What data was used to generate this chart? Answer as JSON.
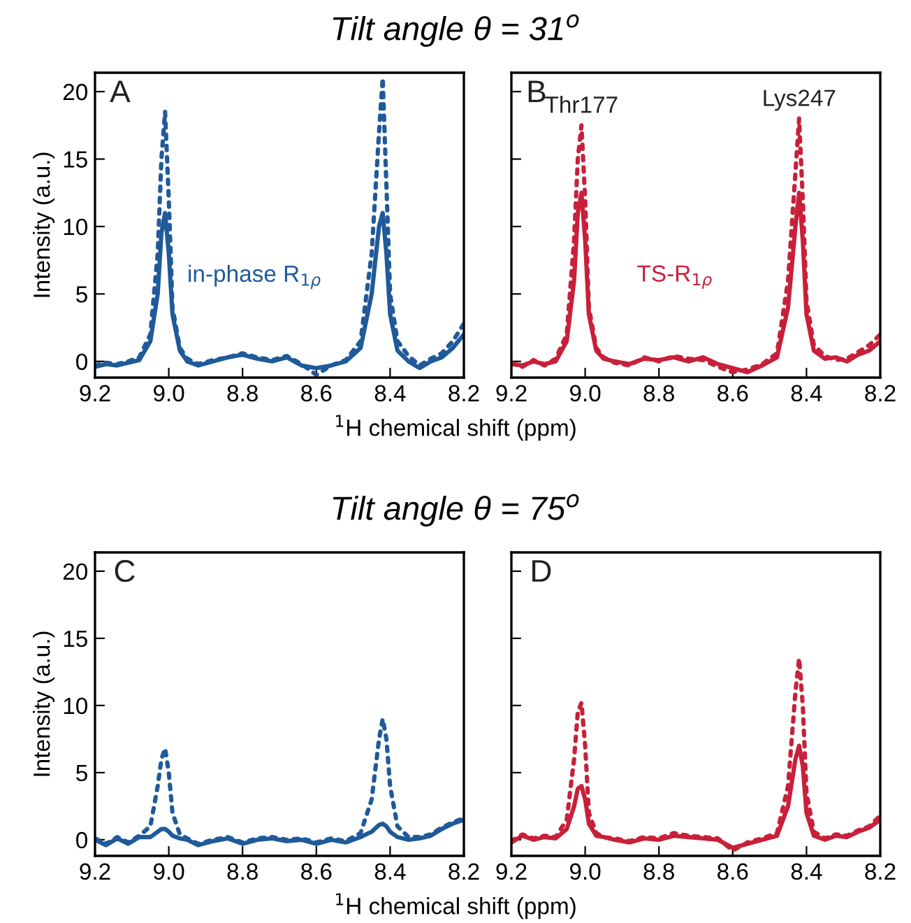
{
  "chart_data": [
    {
      "type": "line",
      "title": "Tilt angle θ = 31$^{o}$",
      "xlabel": "$^{1}$H chemical shift (ppm)",
      "ylabel": "Intensity (a.u.)",
      "annotations": [
        "A",
        "in-phase R$_{1ρ}$"
      ],
      "x": [
        9.2,
        9.17,
        9.14,
        9.11,
        9.08,
        9.05,
        9.03,
        9.02,
        9.01,
        9.0,
        8.99,
        8.97,
        8.95,
        8.92,
        8.88,
        8.84,
        8.8,
        8.76,
        8.72,
        8.68,
        8.64,
        8.6,
        8.56,
        8.52,
        8.48,
        8.45,
        8.43,
        8.42,
        8.41,
        8.4,
        8.38,
        8.35,
        8.32,
        8.29,
        8.26,
        8.23,
        8.2
      ],
      "series": [
        {
          "color": "#1f5a9a",
          "line_style": "solid",
          "values": [
            -0.4,
            -0.2,
            -0.3,
            -0.1,
            0.1,
            1.5,
            5,
            9.5,
            11,
            8,
            3.5,
            0.8,
            0,
            -0.3,
            0,
            0.3,
            0.5,
            0.2,
            0,
            0.3,
            -0.3,
            -0.5,
            -0.3,
            0,
            1,
            5,
            10,
            11,
            8,
            3.5,
            0.8,
            0,
            -0.5,
            0,
            0.3,
            1,
            2
          ]
        },
        {
          "color": "#1f5a9a",
          "line_style": "dotted",
          "values": [
            -0.3,
            -0.1,
            -0.2,
            0,
            0.3,
            2,
            8,
            15,
            18.5,
            12,
            4,
            1,
            0.2,
            -0.2,
            0.1,
            0.3,
            0.6,
            0.3,
            0.1,
            0.4,
            -0.2,
            -1,
            -0.3,
            0.1,
            1.5,
            8,
            17,
            21,
            13,
            5,
            1.5,
            0.4,
            -0.3,
            0.2,
            0.6,
            1.5,
            2.8
          ]
        }
      ],
      "xlim": [
        9.2,
        8.2
      ],
      "xticks": [
        {
          "value": 9.2,
          "label": "9.2"
        },
        {
          "value": 9.0,
          "label": "9.0"
        },
        {
          "value": 8.8,
          "label": "8.8"
        },
        {
          "value": 8.6,
          "label": "8.6"
        },
        {
          "value": 8.4,
          "label": "8.4"
        },
        {
          "value": 8.2,
          "label": "8.2"
        }
      ],
      "ylim": [
        -1.2,
        21.4
      ],
      "yticks": [
        0,
        5,
        10,
        15,
        20
      ],
      "grid": false,
      "legend": false,
      "marker": "none"
    },
    {
      "type": "line",
      "annotations": [
        "B",
        {
          "text": "Thr177",
          "x": 9.01,
          "y": 17.5
        },
        {
          "text": "Lys247",
          "x": 8.42,
          "y": 18
        },
        "TS-R$_{1ρ}$"
      ],
      "x": [
        9.2,
        9.17,
        9.14,
        9.11,
        9.08,
        9.05,
        9.03,
        9.02,
        9.01,
        9.0,
        8.99,
        8.97,
        8.95,
        8.92,
        8.88,
        8.84,
        8.8,
        8.76,
        8.72,
        8.68,
        8.64,
        8.6,
        8.56,
        8.52,
        8.48,
        8.45,
        8.43,
        8.42,
        8.41,
        8.4,
        8.38,
        8.35,
        8.32,
        8.29,
        8.26,
        8.23,
        8.2
      ],
      "series": [
        {
          "color": "#c8203a",
          "line_style": "solid",
          "values": [
            -0.2,
            -0.3,
            0,
            -0.2,
            0,
            1.5,
            6,
            11,
            12.5,
            9,
            3.5,
            0.8,
            0.2,
            0,
            -0.2,
            0.2,
            0.1,
            0.3,
            0,
            0.3,
            -0.2,
            -0.5,
            -0.8,
            -0.3,
            0.3,
            4,
            10,
            12.5,
            9,
            3.5,
            0.8,
            0.2,
            0.3,
            0,
            0.5,
            0.8,
            1.5
          ]
        },
        {
          "color": "#c8203a",
          "line_style": "dotted",
          "values": [
            -0.1,
            -0.4,
            0.1,
            -0.3,
            0.2,
            2,
            9,
            15,
            17.5,
            12,
            4,
            1,
            0.3,
            -0.1,
            -0.3,
            0.3,
            0,
            0.4,
            0.2,
            0.1,
            -0.4,
            -0.8,
            -0.6,
            -0.2,
            0.6,
            6,
            14,
            18,
            12,
            4.5,
            1.2,
            0.4,
            0.1,
            0.2,
            0.7,
            1.2,
            2
          ]
        }
      ],
      "xlim": [
        9.2,
        8.2
      ],
      "xticks": [
        {
          "value": 9.2,
          "label": "9.2"
        },
        {
          "value": 9.0,
          "label": "9.0"
        },
        {
          "value": 8.8,
          "label": "8.8"
        },
        {
          "value": 8.6,
          "label": "8.6"
        },
        {
          "value": 8.4,
          "label": "8.4"
        },
        {
          "value": 8.2,
          "label": "8.2"
        }
      ],
      "ylim": [
        -1.2,
        21.4
      ],
      "yticks": [
        0,
        5,
        10,
        15,
        20
      ],
      "tick_labels": "x",
      "grid": false,
      "legend": false,
      "marker": "none"
    },
    {
      "type": "line",
      "title": "Tilt angle θ = 75$^{o}$",
      "xlabel": "$^{1}$H chemical shift (ppm)",
      "ylabel": "Intensity (a.u.)",
      "annotations": [
        "C"
      ],
      "x": [
        9.2,
        9.17,
        9.14,
        9.11,
        9.08,
        9.05,
        9.03,
        9.02,
        9.01,
        9.0,
        8.99,
        8.97,
        8.95,
        8.92,
        8.88,
        8.84,
        8.8,
        8.76,
        8.72,
        8.68,
        8.64,
        8.6,
        8.56,
        8.52,
        8.48,
        8.45,
        8.43,
        8.42,
        8.41,
        8.4,
        8.38,
        8.35,
        8.32,
        8.29,
        8.26,
        8.23,
        8.2
      ],
      "series": [
        {
          "color": "#1f5a9a",
          "line_style": "solid",
          "values": [
            0,
            -0.4,
            0.1,
            -0.3,
            0.2,
            0.2,
            0.6,
            0.8,
            0.8,
            0.6,
            0.3,
            0.1,
            0,
            -0.4,
            -0.1,
            0.1,
            -0.3,
            0,
            0.1,
            -0.1,
            0,
            -0.3,
            0,
            -0.2,
            0.2,
            0.6,
            1.1,
            1.2,
            1,
            0.6,
            0.2,
            0,
            0.1,
            0.3,
            0.8,
            1.2,
            1.5
          ]
        },
        {
          "color": "#1f5a9a",
          "line_style": "dotted",
          "values": [
            0.1,
            -0.3,
            0.2,
            -0.2,
            0.3,
            1,
            4,
            6,
            6.8,
            5,
            2,
            0.4,
            0.1,
            -0.3,
            0,
            0.2,
            -0.2,
            0.1,
            0.2,
            0,
            0.1,
            -0.2,
            0.1,
            -0.1,
            0.5,
            3,
            7.5,
            9,
            7.5,
            4,
            1,
            0.2,
            0.2,
            0.4,
            0.9,
            1.3,
            1.6
          ]
        }
      ],
      "xlim": [
        9.2,
        8.2
      ],
      "xticks": [
        {
          "value": 9.2,
          "label": "9.2"
        },
        {
          "value": 9.0,
          "label": "9.0"
        },
        {
          "value": 8.8,
          "label": "8.8"
        },
        {
          "value": 8.6,
          "label": "8.6"
        },
        {
          "value": 8.4,
          "label": "8.4"
        },
        {
          "value": 8.2,
          "label": "8.2"
        }
      ],
      "ylim": [
        -1.2,
        21.4
      ],
      "yticks": [
        0,
        5,
        10,
        15,
        20
      ],
      "grid": false,
      "legend": false,
      "marker": "none"
    },
    {
      "type": "line",
      "annotations": [
        "D"
      ],
      "x": [
        9.2,
        9.17,
        9.14,
        9.11,
        9.08,
        9.05,
        9.03,
        9.02,
        9.01,
        9.0,
        8.99,
        8.97,
        8.95,
        8.92,
        8.88,
        8.84,
        8.8,
        8.76,
        8.72,
        8.68,
        8.64,
        8.6,
        8.56,
        8.52,
        8.48,
        8.45,
        8.43,
        8.42,
        8.41,
        8.4,
        8.38,
        8.35,
        8.32,
        8.29,
        8.26,
        8.23,
        8.2
      ],
      "series": [
        {
          "color": "#c8203a",
          "line_style": "solid",
          "values": [
            -0.2,
            0.3,
            0,
            0.2,
            0.1,
            0.8,
            2.5,
            3.8,
            4,
            3,
            1.2,
            0.3,
            0.2,
            0,
            -0.2,
            0.1,
            0,
            0.3,
            0.2,
            0.1,
            0,
            -0.6,
            -0.3,
            0,
            0.3,
            2.5,
            6,
            7,
            5.5,
            2,
            0.3,
            0,
            0.3,
            0.2,
            0.6,
            0.9,
            1.5
          ]
        },
        {
          "color": "#c8203a",
          "line_style": "dotted",
          "values": [
            -0.1,
            0.4,
            0.1,
            0.3,
            0.2,
            1.5,
            6,
            9.5,
            10.2,
            7,
            2,
            0.5,
            0.2,
            0.1,
            -0.1,
            0.2,
            0.1,
            0.5,
            0.3,
            0.2,
            0.1,
            -0.8,
            -0.2,
            0.1,
            0.5,
            4,
            11,
            13.5,
            10,
            3.5,
            0.6,
            0.1,
            0.4,
            0.3,
            0.7,
            1,
            1.8
          ]
        }
      ],
      "xlim": [
        9.2,
        8.2
      ],
      "xticks": [
        {
          "value": 9.2,
          "label": "9.2"
        },
        {
          "value": 9.0,
          "label": "9.0"
        },
        {
          "value": 8.8,
          "label": "8.8"
        },
        {
          "value": 8.6,
          "label": "8.6"
        },
        {
          "value": 8.4,
          "label": "8.4"
        },
        {
          "value": 8.2,
          "label": "8.2"
        }
      ],
      "ylim": [
        -1.2,
        21.4
      ],
      "yticks": [
        0,
        5,
        10,
        15,
        20
      ],
      "tick_labels": "x",
      "grid": false,
      "legend": false,
      "marker": "none"
    }
  ]
}
